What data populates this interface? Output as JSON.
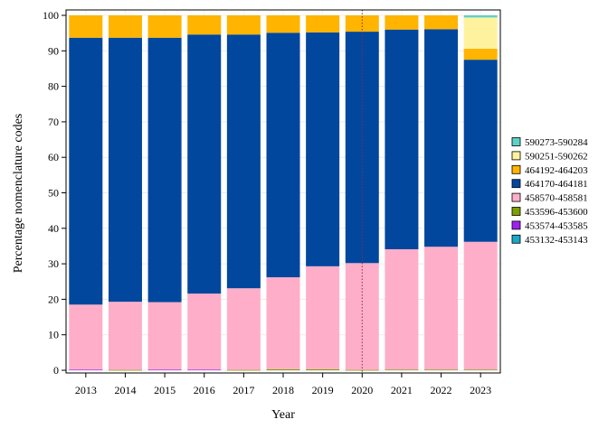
{
  "chart_data": {
    "type": "bar",
    "stacked": true,
    "xlabel": "Year",
    "ylabel": "Percentage nomenclature codes",
    "ylim": [
      0,
      100
    ],
    "yticks": [
      0,
      10,
      20,
      30,
      40,
      50,
      60,
      70,
      80,
      90,
      100
    ],
    "grid": true,
    "legend_position": "right",
    "reference_line": {
      "category": "2020",
      "style": "dotted",
      "color": "#8b2a4a"
    },
    "categories": [
      "2013",
      "2014",
      "2015",
      "2016",
      "2017",
      "2018",
      "2019",
      "2020",
      "2021",
      "2022",
      "2023"
    ],
    "series": [
      {
        "name": "453132-453143",
        "color": "#1aa7c9",
        "values": [
          0,
          0,
          0,
          0,
          0,
          0,
          0,
          0,
          0,
          0,
          0
        ]
      },
      {
        "name": "453574-453585",
        "color": "#a020f0",
        "values": [
          0.2,
          0,
          0.2,
          0.2,
          0,
          0,
          0,
          0,
          0,
          0,
          0
        ]
      },
      {
        "name": "453596-453600",
        "color": "#7f9e00",
        "values": [
          0,
          0.1,
          0,
          0,
          0.1,
          0.3,
          0.3,
          0.1,
          0.2,
          0.2,
          0.2
        ]
      },
      {
        "name": "458570-458581",
        "color": "#ffaec9",
        "values": [
          18.3,
          19.2,
          19.0,
          21.4,
          23.0,
          25.9,
          29.0,
          30.1,
          33.9,
          34.6,
          36.0
        ]
      },
      {
        "name": "464170-464181",
        "color": "#00479d",
        "values": [
          75.2,
          74.4,
          74.5,
          73.0,
          71.5,
          68.9,
          65.9,
          65.2,
          61.9,
          61.3,
          51.3
        ]
      },
      {
        "name": "464192-464203",
        "color": "#ffb400",
        "values": [
          6.3,
          6.3,
          6.3,
          5.4,
          5.4,
          4.9,
          4.8,
          4.6,
          4.0,
          3.9,
          3.1
        ]
      },
      {
        "name": "590251-590262",
        "color": "#fff29e",
        "values": [
          0,
          0,
          0,
          0,
          0,
          0,
          0,
          0,
          0,
          0,
          8.8
        ]
      },
      {
        "name": "590273-590284",
        "color": "#5ed0c8",
        "values": [
          0,
          0,
          0,
          0,
          0,
          0,
          0,
          0,
          0,
          0,
          0.6
        ]
      }
    ]
  }
}
